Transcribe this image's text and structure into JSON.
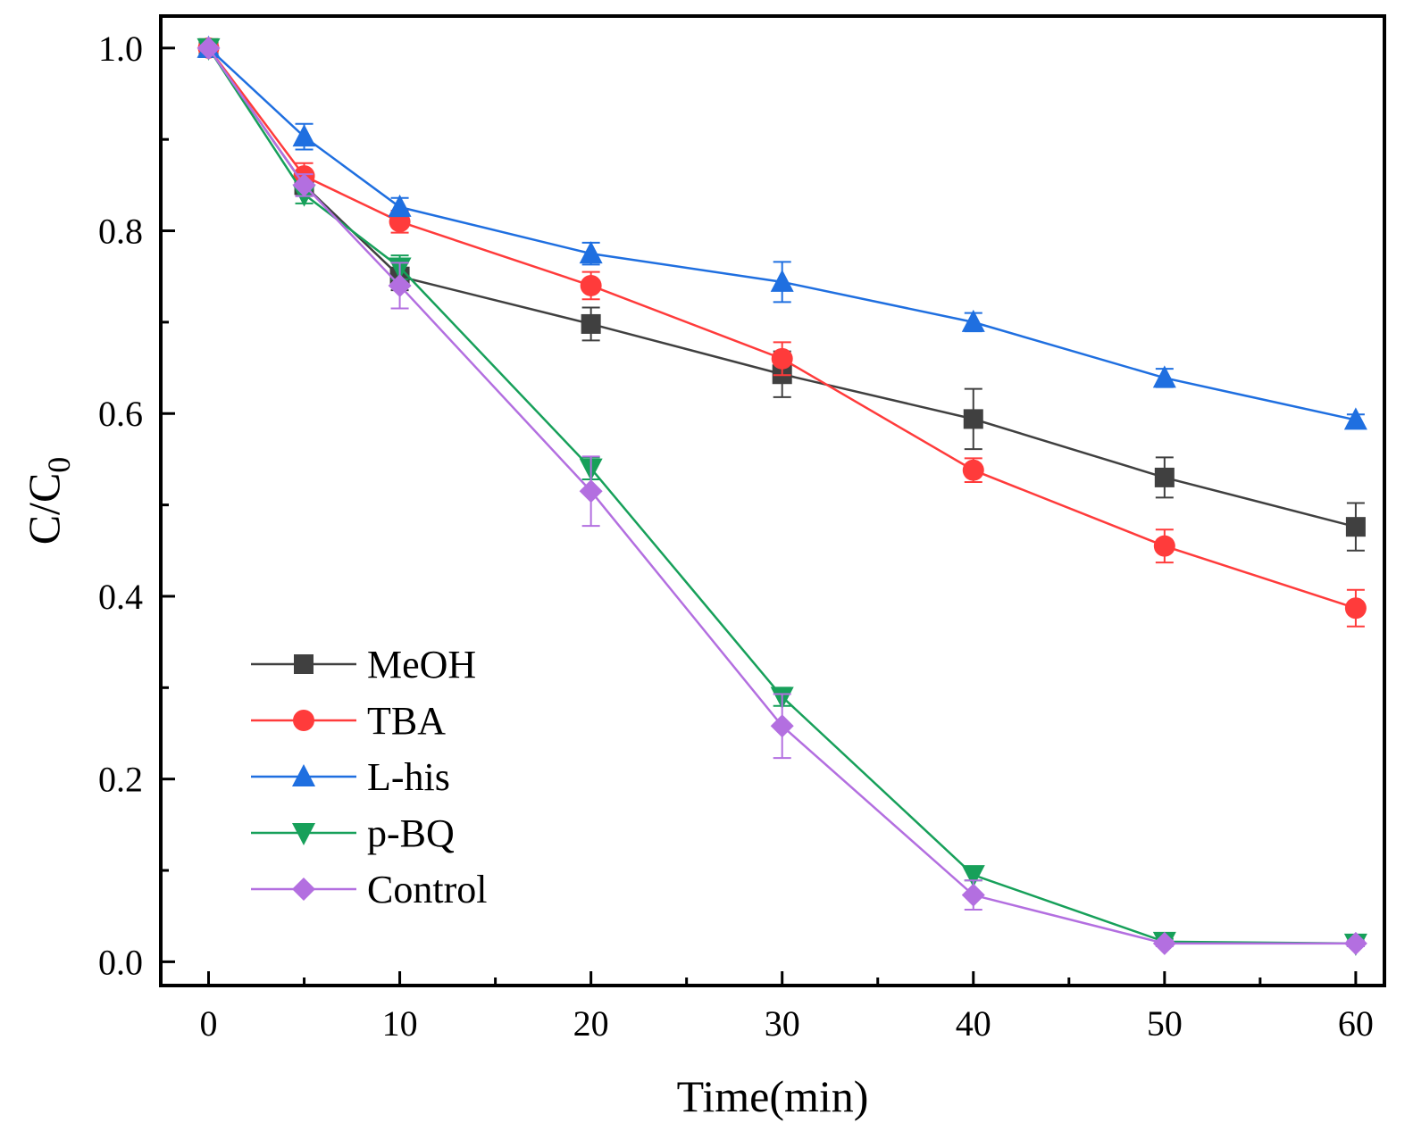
{
  "chart_data": {
    "type": "line",
    "title": "",
    "xlabel": "Time(min)",
    "ylabel_main": "C/C",
    "ylabel_sub": "0",
    "xlim": [
      -2.5,
      61.5
    ],
    "ylim": [
      -0.026,
      1.035
    ],
    "xticks": [
      0,
      10,
      20,
      30,
      40,
      50,
      60
    ],
    "xtick_labels": [
      "0",
      "10",
      "20",
      "30",
      "40",
      "50",
      "60"
    ],
    "xminor": [
      5,
      15,
      25,
      35,
      45,
      55
    ],
    "yticks": [
      0.0,
      0.2,
      0.4,
      0.6,
      0.8,
      1.0
    ],
    "ytick_labels": [
      "0.0",
      "0.2",
      "0.4",
      "0.6",
      "0.8",
      "1.0"
    ],
    "yminor": [
      0.1,
      0.3,
      0.5,
      0.7,
      0.9
    ],
    "x": [
      0,
      5,
      10,
      20,
      30,
      40,
      50,
      60
    ],
    "legend_position": "bottom-left",
    "series": [
      {
        "name": "MeOH",
        "color": "#404040",
        "marker": "square",
        "values": [
          1.0,
          0.85,
          0.75,
          0.698,
          0.643,
          0.594,
          0.53,
          0.476
        ],
        "errors": [
          0,
          0.012,
          0.015,
          0.018,
          0.025,
          0.033,
          0.022,
          0.026
        ]
      },
      {
        "name": "TBA",
        "color": "#ff3b3b",
        "marker": "circle",
        "values": [
          1.0,
          0.86,
          0.81,
          0.74,
          0.66,
          0.538,
          0.455,
          0.387
        ],
        "errors": [
          0,
          0.014,
          0.012,
          0.015,
          0.018,
          0.013,
          0.018,
          0.02
        ]
      },
      {
        "name": "L-his",
        "color": "#1f6fe0",
        "marker": "triangle-up",
        "values": [
          1.0,
          0.903,
          0.826,
          0.775,
          0.744,
          0.7,
          0.639,
          0.593
        ],
        "errors": [
          0,
          0.014,
          0.01,
          0.012,
          0.022,
          0.01,
          0.01,
          0.006
        ]
      },
      {
        "name": "p-BQ",
        "color": "#17a05a",
        "marker": "triangle-down",
        "values": [
          1.0,
          0.84,
          0.76,
          0.54,
          0.29,
          0.095,
          0.022,
          0.02
        ],
        "errors": [
          0,
          0.01,
          0.013,
          0.012,
          0.01,
          0.006,
          0.003,
          0.003
        ]
      },
      {
        "name": "Control",
        "color": "#b36fe0",
        "marker": "diamond",
        "values": [
          1.0,
          0.85,
          0.74,
          0.515,
          0.258,
          0.073,
          0.02,
          0.02
        ],
        "errors": [
          0,
          0.012,
          0.025,
          0.038,
          0.035,
          0.016,
          0.003,
          0.003
        ]
      }
    ]
  }
}
